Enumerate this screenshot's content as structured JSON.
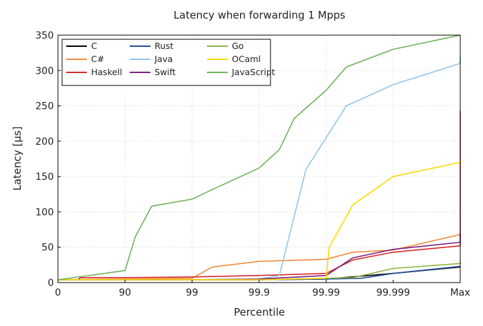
{
  "chart_data": {
    "type": "line",
    "title": "Latency when forwarding 1 Mpps",
    "xlabel": "Percentile",
    "ylabel": "Latency [µs]",
    "x_ticks": [
      "0",
      "90",
      "99",
      "99.9",
      "99.99",
      "99.999",
      "Max"
    ],
    "x_scale": "ordinal-percentile",
    "ylim": [
      0,
      350
    ],
    "y_ticks": [
      0,
      50,
      100,
      150,
      200,
      250,
      300,
      350
    ],
    "grid": "dotted",
    "legend_position": "top-left",
    "series": [
      {
        "name": "C",
        "color": "#000000",
        "points": [
          [
            "0",
            4
          ],
          [
            "90",
            4
          ],
          [
            "99",
            4
          ],
          [
            "99.9",
            4
          ],
          [
            "99.99",
            5
          ],
          [
            "99.999",
            13
          ],
          [
            "Max",
            22
          ]
        ]
      },
      {
        "name": "C#",
        "color": "#f08a3c",
        "points": [
          [
            "0",
            4
          ],
          [
            "90",
            5
          ],
          [
            "99",
            6
          ],
          [
            "99.5",
            22
          ],
          [
            "99.9",
            30
          ],
          [
            "99.99",
            33
          ],
          [
            "99.996",
            43
          ],
          [
            "99.999",
            46
          ],
          [
            "Max",
            68
          ]
        ]
      },
      {
        "name": "Haskell",
        "color": "#d62728",
        "points": [
          [
            "0",
            4
          ],
          [
            "27",
            4
          ],
          [
            "30",
            7
          ],
          [
            "90",
            7
          ],
          [
            "99",
            8
          ],
          [
            "99.9",
            10
          ],
          [
            "99.99",
            13
          ],
          [
            "99.996",
            32
          ],
          [
            "99.999",
            43
          ],
          [
            "99.9999",
            52
          ],
          [
            "99.99995",
            57
          ],
          [
            "99.99995",
            187
          ],
          [
            "Max",
            243
          ]
        ]
      },
      {
        "name": "Rust",
        "color": "#1f4e9c",
        "points": [
          [
            "0",
            4
          ],
          [
            "90",
            4
          ],
          [
            "99",
            4
          ],
          [
            "99.9",
            4
          ],
          [
            "99.99",
            5
          ],
          [
            "99.997",
            6
          ],
          [
            "99.999",
            13
          ],
          [
            "Max",
            23
          ]
        ]
      },
      {
        "name": "Java",
        "color": "#8fc6ea",
        "points": [
          [
            "0",
            4
          ],
          [
            "90",
            4
          ],
          [
            "99",
            4
          ],
          [
            "99.9",
            5
          ],
          [
            "99.95",
            10
          ],
          [
            "99.98",
            160
          ],
          [
            "99.99",
            205
          ],
          [
            "99.995",
            250
          ],
          [
            "99.999",
            280
          ],
          [
            "99.9999",
            310
          ],
          [
            "Max",
            319
          ]
        ]
      },
      {
        "name": "Swift",
        "color": "#7a1f7a",
        "points": [
          [
            "0",
            4
          ],
          [
            "90",
            4
          ],
          [
            "99",
            4
          ],
          [
            "99.9",
            5
          ],
          [
            "99.99",
            10
          ],
          [
            "99.996",
            35
          ],
          [
            "99.999",
            47
          ],
          [
            "99.9999",
            57
          ],
          [
            "Max",
            70
          ]
        ]
      },
      {
        "name": "Go",
        "color": "#8cb33e",
        "points": [
          [
            "0",
            4
          ],
          [
            "90",
            4
          ],
          [
            "99",
            4
          ],
          [
            "99.9",
            4
          ],
          [
            "99.99",
            6
          ],
          [
            "99.996",
            7
          ],
          [
            "99.999",
            20
          ],
          [
            "99.9999",
            27
          ],
          [
            "Max",
            30
          ]
        ]
      },
      {
        "name": "OCaml",
        "color": "#ffd800",
        "points": [
          [
            "0",
            4
          ],
          [
            "90",
            4
          ],
          [
            "99",
            4
          ],
          [
            "99.9",
            4
          ],
          [
            "99.99",
            6
          ],
          [
            "99.991",
            50
          ],
          [
            "99.996",
            110
          ],
          [
            "99.999",
            150
          ],
          [
            "99.9999",
            170
          ],
          [
            "Max",
            175
          ]
        ]
      },
      {
        "name": "JavaScript",
        "color": "#6db35a",
        "points": [
          [
            "0",
            4
          ],
          [
            "90",
            17
          ],
          [
            "93",
            65
          ],
          [
            "96",
            108
          ],
          [
            "99",
            118
          ],
          [
            "99.4",
            128
          ],
          [
            "99.9",
            162
          ],
          [
            "99.95",
            188
          ],
          [
            "99.97",
            232
          ],
          [
            "99.99",
            272
          ],
          [
            "99.995",
            305
          ],
          [
            "99.999",
            330
          ],
          [
            "99.9999",
            350
          ]
        ]
      }
    ]
  }
}
